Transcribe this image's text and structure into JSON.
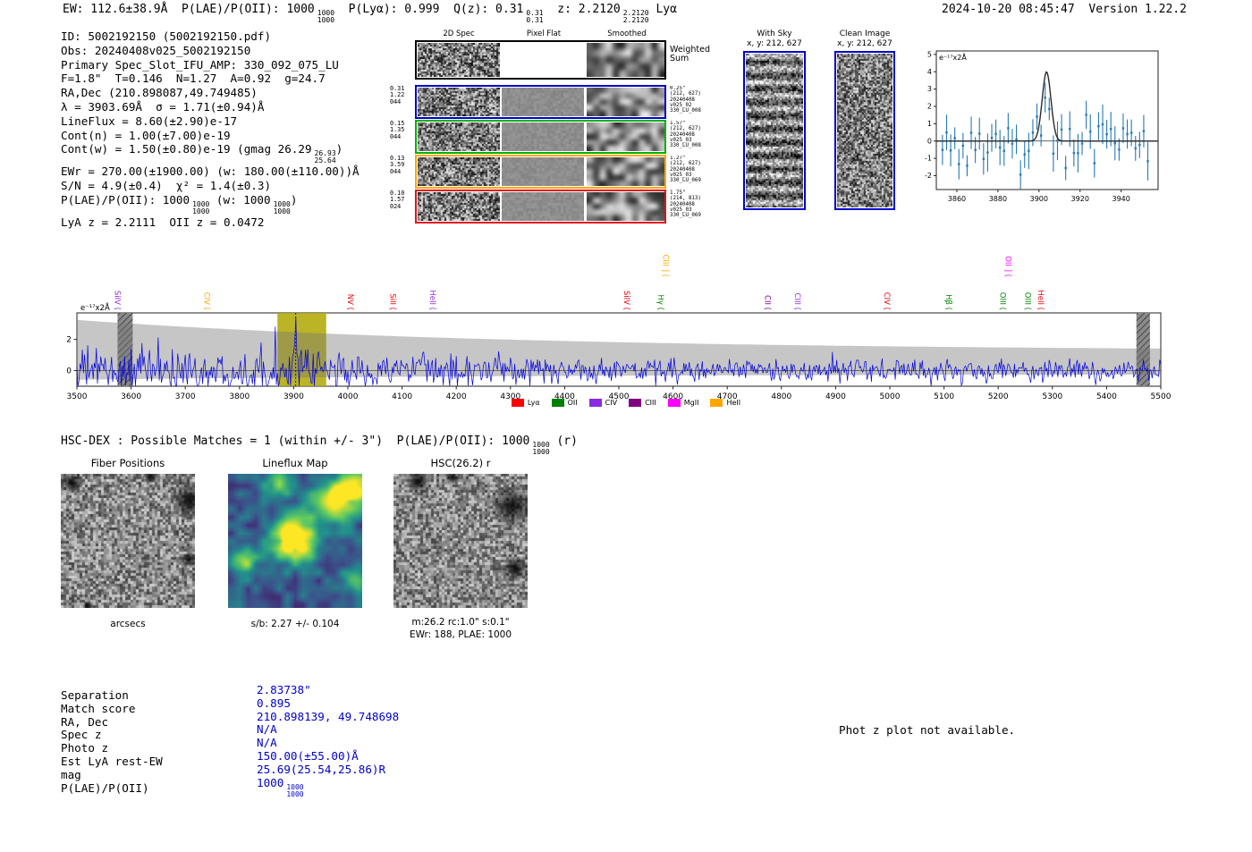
{
  "meta": {
    "generated": "2024-10-20 08:45:47",
    "version": "Version 1.22.2"
  },
  "header": {
    "segments": [
      {
        "t": "EW: 112.6±38.9Å  P(LAE)/P(OII): 1000"
      },
      {
        "f": [
          "1000",
          "1000"
        ]
      },
      {
        "t": "  P(Lyα): 0.999  Q(z): 0.31"
      },
      {
        "f": [
          "0.31",
          "0.31"
        ]
      },
      {
        "t": "  z: 2.2120"
      },
      {
        "f": [
          "2.2120",
          "2.2120"
        ]
      },
      {
        "t": " Lyα"
      }
    ]
  },
  "info_lines": [
    [
      {
        "t": "ID: 5002192150 (5002192150.pdf)"
      }
    ],
    [
      {
        "t": "Obs: 20240408v025_5002192150"
      }
    ],
    [
      {
        "t": "Primary Spec_Slot_IFU_AMP: 330_092_075_LU"
      }
    ],
    [
      {
        "t": "F=1.8\"  T=0.146  N=1.27  A=0.92  g=24.7"
      }
    ],
    [
      {
        "t": "RA,Dec (210.898087,49.749485)"
      }
    ],
    [
      {
        "t": "λ = 3903.69Å  σ = 1.71(±0.94)Å"
      }
    ],
    [
      {
        "t": "LineFlux = 8.60(±2.90)e-17"
      }
    ],
    [
      {
        "t": "Cont(n) = 1.00(±7.00)e-19"
      }
    ],
    [
      {
        "t": "Cont(w) = 1.50(±0.80)e-19 (gmag 26.29"
      },
      {
        "f": [
          "26.93",
          "25.64"
        ]
      },
      {
        "t": ")"
      }
    ],
    [
      {
        "t": "EWr = 270.00(±1900.00) (w: 180.00(±110.00))Å"
      }
    ],
    [
      {
        "t": "S/N = 4.9(±0.4)  χ² = 1.4(±0.3)"
      }
    ],
    [
      {
        "t": "P(LAE)/P(OII): 1000"
      },
      {
        "f": [
          "1000",
          "1000"
        ]
      },
      {
        "t": " (w: 1000"
      },
      {
        "f": [
          "1000",
          "1000"
        ]
      },
      {
        "t": ")"
      }
    ],
    [
      {
        "t": "LyA z = 2.2111  OII z = 0.0472"
      }
    ]
  ],
  "spec2d": {
    "col_headers": [
      "2D Spec",
      "Pixel Flat",
      "Smoothed"
    ],
    "weighted_sum_label": "Weighted\nSum",
    "rows": [
      {
        "color": "#0000cd",
        "left": [
          "0.31",
          "1.22",
          "044"
        ],
        "right": [
          "0.25\"",
          "(212, 627)",
          "20240408",
          "v025_02",
          "330_LU_008"
        ]
      },
      {
        "color": "#00b000",
        "left": [
          "0.15",
          "1.35",
          "044"
        ],
        "right": [
          "1.57\"",
          "(212, 627)",
          "20240408",
          "v025_03",
          "330_LU_008"
        ]
      },
      {
        "color": "#ffa500",
        "left": [
          "0.13",
          "3.59",
          "044"
        ],
        "right": [
          "1.27\"",
          "(212, 627)",
          "20240408",
          "v025_03",
          "330_LU_069"
        ]
      },
      {
        "color": "#dc1414",
        "left": [
          "0.10",
          "1.57",
          "024"
        ],
        "right": [
          "1.75\"",
          "(214, 813)",
          "20240408",
          "v025_03",
          "330_LU_069"
        ]
      }
    ]
  },
  "sky_panels": {
    "with_sky": {
      "title": "With Sky",
      "coords": "x, y: 212, 627"
    },
    "clean": {
      "title": "Clean Image",
      "coords": "x, y: 212, 627"
    }
  },
  "chart_data": [
    {
      "id": "line_fit_zoom",
      "type": "scatter",
      "title": "",
      "units_label": "e⁻¹⁷x2Å",
      "xlim": [
        3850,
        3958
      ],
      "ylim": [
        -2.8,
        5.2
      ],
      "xticks": [
        3860,
        3880,
        3900,
        3920,
        3940
      ],
      "yticks": [
        -2,
        -1,
        0,
        1,
        2,
        3,
        4,
        5
      ],
      "points_color": "#2878b5",
      "fit": {
        "shape": "gaussian",
        "center": 3903.69,
        "sigma": 1.71,
        "peak": 4.0,
        "color": "#2a2a2a"
      },
      "noise": {
        "n": 51,
        "x_start": 3853,
        "x_step": 2,
        "amp": 1.05,
        "err_min": 0.6,
        "err_spread": 0.55,
        "seed": 77
      }
    },
    {
      "id": "full_spectrum",
      "type": "line",
      "units_label": "e⁻¹⁷x2Å",
      "xlim": [
        3500,
        5500
      ],
      "ylim": [
        -1.0,
        3.7
      ],
      "xticks": [
        3500,
        3600,
        3700,
        3800,
        3900,
        4000,
        4100,
        4200,
        4300,
        4400,
        4500,
        4600,
        4700,
        4800,
        4900,
        5000,
        5100,
        5200,
        5300,
        5400,
        5500
      ],
      "yticks": [
        0,
        2
      ],
      "line_color": "#0000dd",
      "envelope_color": "rgba(120,120,120,0.42)",
      "detection_wavelength": 3903.69,
      "highlight_band": {
        "from": 3870,
        "to": 3960,
        "color": "rgba(174,167,0,0.85)"
      },
      "masked_bands": [
        {
          "from": 3575,
          "to": 3603
        },
        {
          "from": 5455,
          "to": 5480
        }
      ],
      "noise": {
        "step": 2,
        "amp": 0.46,
        "spike_p": 0.045,
        "spike_gain": 2.6,
        "det_peak": 3.3,
        "det_sigma": 1.9,
        "seed": 1234
      },
      "line_labels": [
        {
          "text": "SiIV (",
          "wave": 3570,
          "color": "#8a2be2",
          "raised": false
        },
        {
          "text": "CIV (",
          "wave": 3735,
          "color": "#ffa500",
          "raised": false
        },
        {
          "text": "NV (",
          "wave": 4000,
          "color": "#e8000b",
          "raised": false
        },
        {
          "text": "SiII (",
          "wave": 4078,
          "color": "#e8000b",
          "raised": false
        },
        {
          "text": "HeII (",
          "wave": 4152,
          "color": "#8a2be2",
          "raised": false
        },
        {
          "text": "SiIV (",
          "wave": 4510,
          "color": "#e8000b",
          "raised": false
        },
        {
          "text": "Hγ (",
          "wave": 4573,
          "color": "#008000",
          "raised": false
        },
        {
          "text": "CIII ] (",
          "wave": 4582,
          "color": "#ffa500",
          "raised": true
        },
        {
          "text": "CII (",
          "wave": 4770,
          "color": "#800080",
          "raised": false
        },
        {
          "text": "CIII (",
          "wave": 4825,
          "color": "#8a2be2",
          "raised": false
        },
        {
          "text": "CIV (",
          "wave": 4990,
          "color": "#e8000b",
          "raised": false
        },
        {
          "text": "Hβ (",
          "wave": 5104,
          "color": "#008000",
          "raised": false
        },
        {
          "text": "OIII (",
          "wave": 5204,
          "color": "#008000",
          "raised": false
        },
        {
          "text": "OII ] (",
          "wave": 5214,
          "color": "#ff00ff",
          "raised": true
        },
        {
          "text": "OIII (",
          "wave": 5250,
          "color": "#008000",
          "raised": false
        },
        {
          "text": "HeII (",
          "wave": 5274,
          "color": "#e8000b",
          "raised": false
        }
      ],
      "legend": [
        {
          "label": "Lyα",
          "color": "#ff0000"
        },
        {
          "label": "OII",
          "color": "#008000"
        },
        {
          "label": "CIV",
          "color": "#8a2be2"
        },
        {
          "label": "CIII",
          "color": "#800080"
        },
        {
          "label": "MgII",
          "color": "#ff00ff"
        },
        {
          "label": "HeII",
          "color": "#ffa500"
        }
      ]
    }
  ],
  "hsc_line": {
    "segments": [
      {
        "t": "HSC-DEX : Possible Matches = 1 (within +/- 3\")  P(LAE)/P(OII): 1000"
      },
      {
        "f": [
          "1000",
          "1000"
        ]
      },
      {
        "t": " (r)"
      }
    ]
  },
  "cutouts": {
    "ticks": [
      -4,
      -2,
      0,
      2,
      4
    ],
    "fiber": {
      "title": "Fiber Positions",
      "xlabel": "arcsecs",
      "north": "N",
      "east": "E"
    },
    "lineflux": {
      "title": "Lineflux Map",
      "caption": "s/b: 2.27 +/- 0.104",
      "north": "N",
      "east": "E"
    },
    "hsc": {
      "title": "HSC(26.2) r",
      "caption1": "m:26.2 rc:1.0\" s:0.1\"",
      "caption2": "EWr: 188, PLAE: 1000",
      "north": "N",
      "east": "E"
    }
  },
  "match_table": {
    "rows": [
      {
        "label": "Separation",
        "value": "2.83738\""
      },
      {
        "label": "Match score",
        "value": "0.895"
      },
      {
        "label": "RA, Dec",
        "value": "210.898139, 49.748698"
      },
      {
        "label": "Spec z",
        "value": "N/A"
      },
      {
        "label": "Photo z",
        "value": "N/A"
      },
      {
        "label": "Est LyA rest-EW",
        "value": "150.00(±55.00)Å"
      },
      {
        "label": "mag",
        "value": "25.69(25.54,25.86)R"
      },
      {
        "label": "P(LAE)/P(OII)",
        "value": "1000",
        "frac": [
          "1000",
          "1000"
        ]
      }
    ]
  },
  "photz_note": "Phot z plot not available."
}
